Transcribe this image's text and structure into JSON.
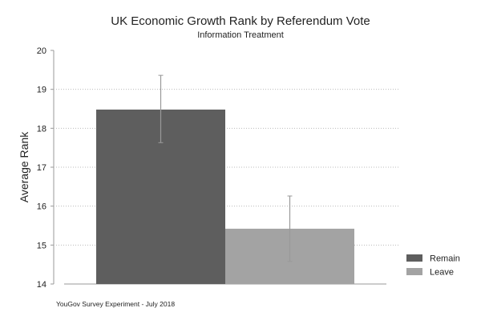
{
  "chart_data": {
    "type": "bar",
    "title": "UK Economic Growth Rank by Referendum Vote",
    "subtitle": "Information Treatment",
    "xlabel": "",
    "ylabel": "Average Rank",
    "ylim": [
      14,
      20
    ],
    "yticks": [
      14,
      15,
      16,
      17,
      18,
      19,
      20
    ],
    "grid": true,
    "legend_position": "right",
    "note": "YouGov Survey Experiment - July 2018",
    "series": [
      {
        "name": "Remain",
        "value": 18.48,
        "ci_low": 17.63,
        "ci_high": 19.36,
        "color": "#5e5e5e"
      },
      {
        "name": "Leave",
        "value": 15.42,
        "ci_low": 14.58,
        "ci_high": 16.26,
        "color": "#a3a3a3"
      }
    ]
  }
}
